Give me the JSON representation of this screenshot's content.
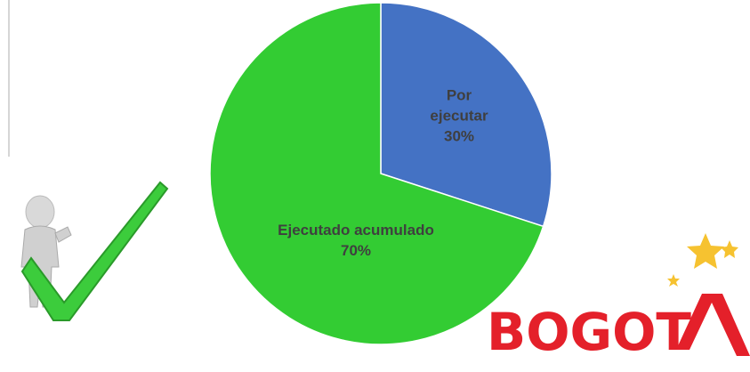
{
  "chart_data": {
    "type": "pie",
    "categories": [
      "Por ejecutar",
      "Ejecutado acumulado"
    ],
    "values": [
      30,
      70
    ],
    "value_labels": [
      "30%",
      "70%"
    ],
    "colors": [
      "#4472c4",
      "#33cc33"
    ]
  },
  "logo": {
    "text": "BOGOT"
  }
}
